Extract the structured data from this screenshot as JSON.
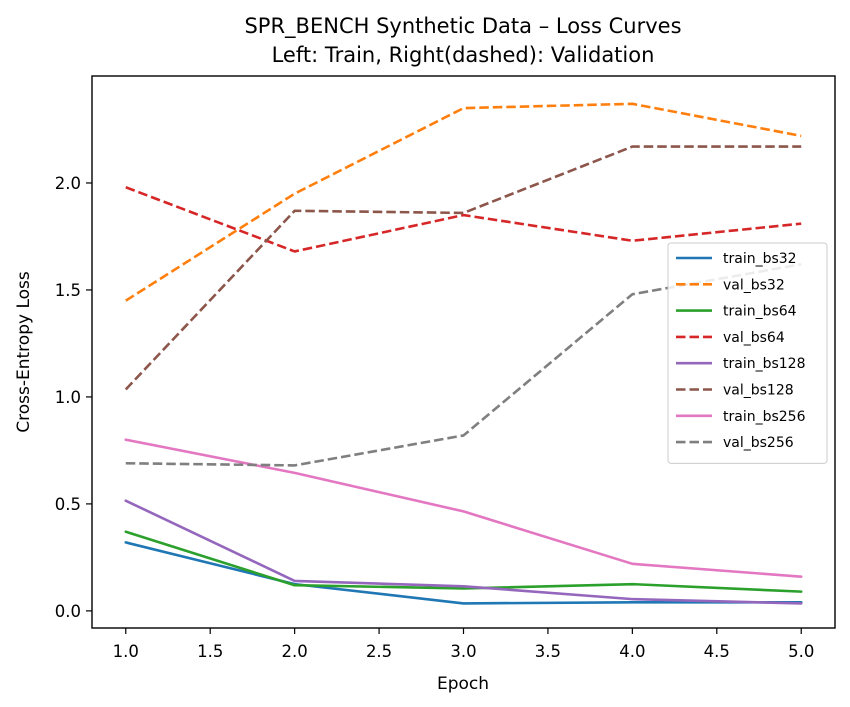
{
  "chart_data": {
    "type": "line",
    "title": "SPR_BENCH Synthetic Data – Loss Curves",
    "subtitle": "Left: Train, Right(dashed): Validation",
    "xlabel": "Epoch",
    "ylabel": "Cross-Entropy Loss",
    "xlim": [
      0.8,
      5.2
    ],
    "ylim": [
      -0.08,
      2.5
    ],
    "x_ticks": [
      "1.0",
      "1.5",
      "2.0",
      "2.5",
      "3.0",
      "3.5",
      "4.0",
      "4.5",
      "5.0"
    ],
    "y_ticks": [
      "0.0",
      "0.5",
      "1.0",
      "1.5",
      "2.0"
    ],
    "grid": false,
    "legend_position": "center-right",
    "x": [
      1,
      2,
      3,
      4,
      5
    ],
    "series": [
      {
        "name": "train_bs32",
        "values": [
          0.32,
          0.125,
          0.035,
          0.04,
          0.04
        ],
        "color": "#1f77b4",
        "style": "solid"
      },
      {
        "name": "val_bs32",
        "values": [
          1.45,
          1.95,
          2.35,
          2.37,
          2.22
        ],
        "color": "#ff7f0e",
        "style": "dashed"
      },
      {
        "name": "train_bs64",
        "values": [
          0.37,
          0.12,
          0.105,
          0.125,
          0.09
        ],
        "color": "#2ca02c",
        "style": "solid"
      },
      {
        "name": "val_bs64",
        "values": [
          1.98,
          1.68,
          1.85,
          1.73,
          1.81
        ],
        "color": "#d62728",
        "style": "dashed"
      },
      {
        "name": "train_bs128",
        "values": [
          0.515,
          0.14,
          0.115,
          0.055,
          0.035
        ],
        "color": "#9467bd",
        "style": "solid"
      },
      {
        "name": "val_bs128",
        "values": [
          1.035,
          1.87,
          1.86,
          2.17,
          2.17
        ],
        "color": "#8c564b",
        "style": "dashed"
      },
      {
        "name": "train_bs256",
        "values": [
          0.8,
          0.645,
          0.465,
          0.22,
          0.16
        ],
        "color": "#e377c2",
        "style": "solid"
      },
      {
        "name": "val_bs256",
        "values": [
          0.69,
          0.68,
          0.82,
          1.48,
          1.62
        ],
        "color": "#7f7f7f",
        "style": "dashed"
      }
    ]
  }
}
